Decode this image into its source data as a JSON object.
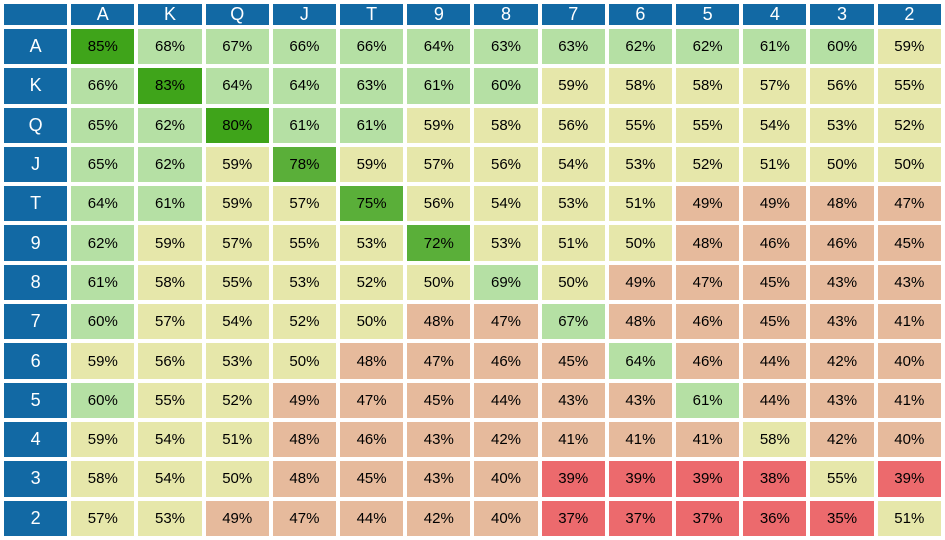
{
  "chart_data": {
    "type": "heatmap",
    "title": "",
    "unit": "%",
    "corner_label": "",
    "row_ranks": [
      "A",
      "K",
      "Q",
      "J",
      "T",
      "9",
      "8",
      "7",
      "6",
      "5",
      "4",
      "3",
      "2"
    ],
    "col_ranks": [
      "A",
      "K",
      "Q",
      "J",
      "T",
      "9",
      "8",
      "7",
      "6",
      "5",
      "4",
      "3",
      "2"
    ],
    "matrix": [
      [
        85,
        68,
        67,
        66,
        66,
        64,
        63,
        63,
        62,
        62,
        61,
        60,
        59
      ],
      [
        66,
        83,
        64,
        64,
        63,
        61,
        60,
        59,
        58,
        58,
        57,
        56,
        55
      ],
      [
        65,
        62,
        80,
        61,
        61,
        59,
        58,
        56,
        55,
        55,
        54,
        53,
        52
      ],
      [
        65,
        62,
        59,
        78,
        59,
        57,
        56,
        54,
        53,
        52,
        51,
        50,
        50
      ],
      [
        64,
        61,
        59,
        57,
        75,
        56,
        54,
        53,
        51,
        49,
        49,
        48,
        47
      ],
      [
        62,
        59,
        57,
        55,
        53,
        72,
        53,
        51,
        50,
        48,
        46,
        46,
        45
      ],
      [
        61,
        58,
        55,
        53,
        52,
        50,
        69,
        50,
        49,
        47,
        45,
        43,
        43
      ],
      [
        60,
        57,
        54,
        52,
        50,
        48,
        47,
        67,
        48,
        46,
        45,
        43,
        41
      ],
      [
        59,
        56,
        53,
        50,
        48,
        47,
        46,
        45,
        64,
        46,
        44,
        42,
        40
      ],
      [
        60,
        55,
        52,
        49,
        47,
        45,
        44,
        43,
        43,
        61,
        44,
        43,
        41
      ],
      [
        59,
        54,
        51,
        48,
        46,
        43,
        42,
        41,
        41,
        41,
        58,
        42,
        40
      ],
      [
        58,
        54,
        50,
        48,
        45,
        43,
        40,
        39,
        39,
        39,
        38,
        55,
        39
      ],
      [
        57,
        53,
        49,
        47,
        44,
        42,
        40,
        37,
        37,
        37,
        36,
        35,
        51
      ]
    ],
    "color_scale": {
      "bands": [
        {
          "min": 80,
          "color": "#3fa41a"
        },
        {
          "min": 70,
          "color": "#5aaf39"
        },
        {
          "min": 60,
          "color": "#b5e0a4"
        },
        {
          "min": 50,
          "color": "#e6e7aa"
        },
        {
          "min": 40,
          "color": "#e6ba9c"
        },
        {
          "min": 0,
          "color": "#ec6a6d"
        }
      ]
    },
    "layout": {
      "grid_color": "#ffffff",
      "header_bg": "#1269a4",
      "header_text_color": "#ffffff",
      "cell_text_color": "#000000"
    }
  }
}
